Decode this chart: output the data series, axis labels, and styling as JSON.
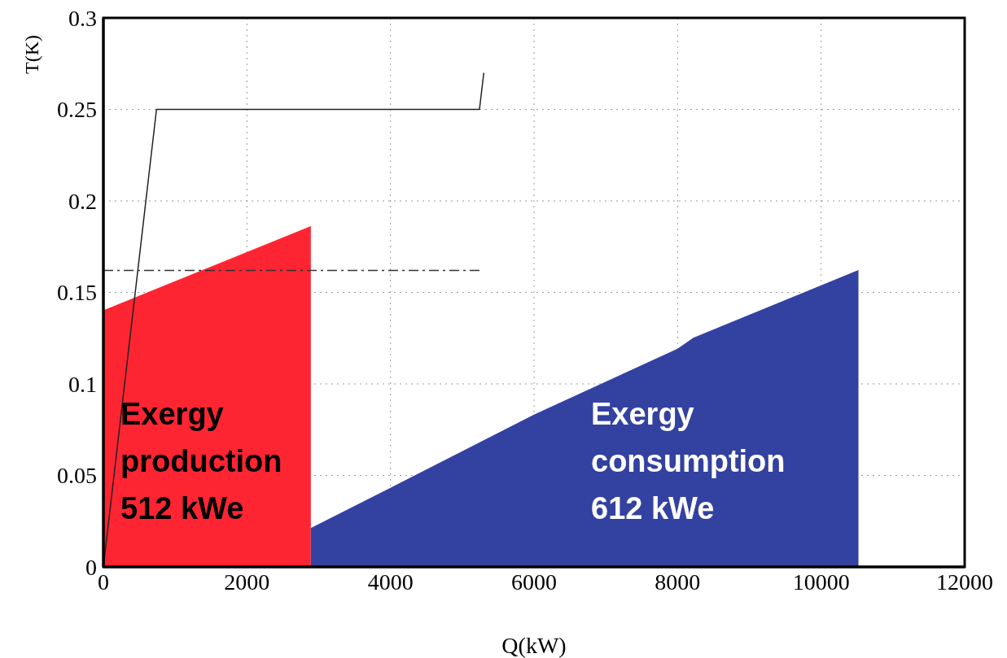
{
  "chart_data": {
    "type": "area",
    "xlabel": "Q(kW)",
    "ylabel": "T(K)",
    "xlim": [
      0,
      12000
    ],
    "xticks": [
      0,
      2000,
      4000,
      6000,
      8000,
      10000,
      12000
    ],
    "ylim": [
      0,
      0.3
    ],
    "yticks": [
      0,
      0.05,
      0.1,
      0.15,
      0.2,
      0.25,
      0.3
    ],
    "grid": true,
    "series": [
      {
        "color": "#fe2532",
        "x": [
          0,
          2890
        ],
        "values": [
          0.14,
          0.186
        ]
      },
      {
        "color": "#3341a0",
        "x": [
          2890,
          4000,
          6000,
          8000,
          8220,
          10520
        ],
        "values": [
          0.021,
          0.043,
          0.083,
          0.119,
          0.125,
          0.162
        ]
      },
      {
        "type": "line",
        "color": "#222222",
        "line_style": "solid",
        "x": [
          0,
          740,
          5240,
          5300
        ],
        "values": [
          0,
          0.25,
          0.25,
          0.27
        ]
      },
      {
        "type": "line",
        "color": "#333333",
        "line_style": "dashed",
        "x": [
          0,
          5260
        ],
        "values": [
          0.162,
          0.162
        ]
      }
    ],
    "annotations": [
      "Exergy\nproduction\n512 kWe",
      "Exergy\nconsumption\n612 kWe"
    ]
  }
}
